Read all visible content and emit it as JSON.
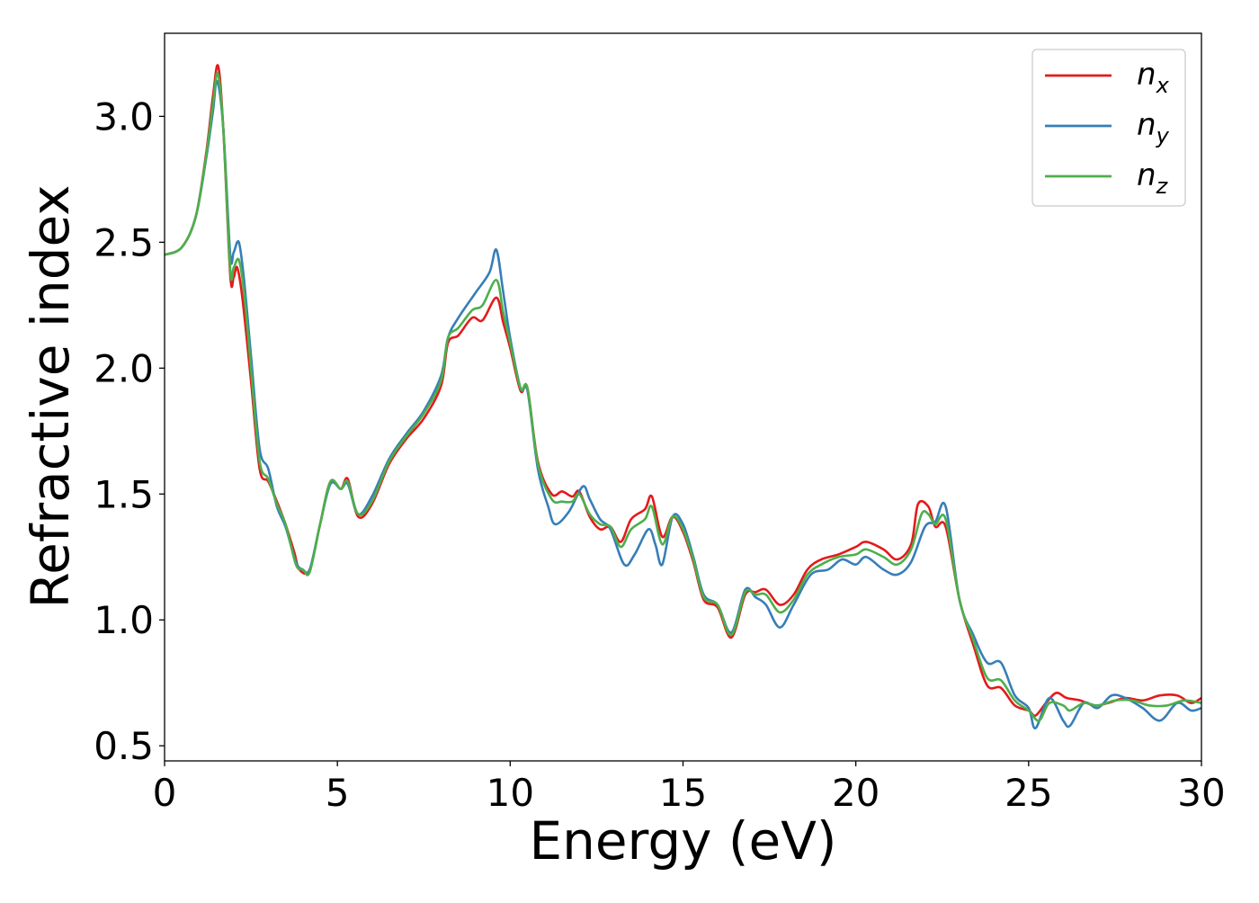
{
  "chart_data": {
    "type": "line",
    "title": "",
    "xlabel": "Energy (eV)",
    "ylabel": "Refractive index",
    "xlim": [
      0,
      30
    ],
    "ylim": [
      0.44,
      3.33
    ],
    "xticks": [
      0,
      5,
      10,
      15,
      20,
      25,
      30
    ],
    "xtick_labels": [
      "0",
      "5",
      "10",
      "15",
      "20",
      "25",
      "30"
    ],
    "yticks": [
      0.5,
      1.0,
      1.5,
      2.0,
      2.5,
      3.0
    ],
    "ytick_labels": [
      "0.5",
      "1.0",
      "1.5",
      "2.0",
      "2.5",
      "3.0"
    ],
    "grid": false,
    "legend_position": "top-right",
    "series": [
      {
        "name": "n",
        "subscript": "x",
        "color": "#e41a1c",
        "points": [
          [
            0,
            2.45
          ],
          [
            0.5,
            2.48
          ],
          [
            0.9,
            2.6
          ],
          [
            1.2,
            2.85
          ],
          [
            1.4,
            3.08
          ],
          [
            1.55,
            3.2
          ],
          [
            1.7,
            2.95
          ],
          [
            1.9,
            2.37
          ],
          [
            2.0,
            2.36
          ],
          [
            2.1,
            2.4
          ],
          [
            2.25,
            2.28
          ],
          [
            2.5,
            1.95
          ],
          [
            2.75,
            1.6
          ],
          [
            3.0,
            1.55
          ],
          [
            3.25,
            1.47
          ],
          [
            3.5,
            1.38
          ],
          [
            3.75,
            1.27
          ],
          [
            3.9,
            1.2
          ],
          [
            4.2,
            1.2
          ],
          [
            4.5,
            1.38
          ],
          [
            4.8,
            1.55
          ],
          [
            5.1,
            1.52
          ],
          [
            5.3,
            1.56
          ],
          [
            5.6,
            1.41
          ],
          [
            6.0,
            1.46
          ],
          [
            6.5,
            1.62
          ],
          [
            7.0,
            1.72
          ],
          [
            7.5,
            1.8
          ],
          [
            8.0,
            1.93
          ],
          [
            8.2,
            2.1
          ],
          [
            8.5,
            2.13
          ],
          [
            8.9,
            2.2
          ],
          [
            9.2,
            2.19
          ],
          [
            9.6,
            2.28
          ],
          [
            9.8,
            2.18
          ],
          [
            10.0,
            2.08
          ],
          [
            10.3,
            1.91
          ],
          [
            10.5,
            1.92
          ],
          [
            10.8,
            1.63
          ],
          [
            11.2,
            1.5
          ],
          [
            11.5,
            1.51
          ],
          [
            11.8,
            1.49
          ],
          [
            12.0,
            1.51
          ],
          [
            12.3,
            1.41
          ],
          [
            12.6,
            1.36
          ],
          [
            12.9,
            1.37
          ],
          [
            13.2,
            1.31
          ],
          [
            13.5,
            1.4
          ],
          [
            13.9,
            1.44
          ],
          [
            14.1,
            1.49
          ],
          [
            14.4,
            1.33
          ],
          [
            14.7,
            1.41
          ],
          [
            15.0,
            1.35
          ],
          [
            15.3,
            1.23
          ],
          [
            15.6,
            1.08
          ],
          [
            16.0,
            1.05
          ],
          [
            16.4,
            0.93
          ],
          [
            16.8,
            1.1
          ],
          [
            17.1,
            1.11
          ],
          [
            17.4,
            1.12
          ],
          [
            17.8,
            1.06
          ],
          [
            18.2,
            1.1
          ],
          [
            18.6,
            1.2
          ],
          [
            19.0,
            1.24
          ],
          [
            19.5,
            1.26
          ],
          [
            20.0,
            1.29
          ],
          [
            20.3,
            1.31
          ],
          [
            20.8,
            1.28
          ],
          [
            21.2,
            1.24
          ],
          [
            21.6,
            1.3
          ],
          [
            21.8,
            1.46
          ],
          [
            22.1,
            1.45
          ],
          [
            22.3,
            1.37
          ],
          [
            22.6,
            1.37
          ],
          [
            23.0,
            1.08
          ],
          [
            23.4,
            0.9
          ],
          [
            23.8,
            0.74
          ],
          [
            24.2,
            0.73
          ],
          [
            24.6,
            0.66
          ],
          [
            25.0,
            0.64
          ],
          [
            25.2,
            0.62
          ],
          [
            25.5,
            0.67
          ],
          [
            25.8,
            0.71
          ],
          [
            26.1,
            0.69
          ],
          [
            26.5,
            0.68
          ],
          [
            26.9,
            0.66
          ],
          [
            27.3,
            0.67
          ],
          [
            27.8,
            0.69
          ],
          [
            28.3,
            0.68
          ],
          [
            28.8,
            0.7
          ],
          [
            29.3,
            0.7
          ],
          [
            29.7,
            0.67
          ],
          [
            30.0,
            0.69
          ]
        ]
      },
      {
        "name": "n",
        "subscript": "y",
        "color": "#377eb8",
        "points": [
          [
            0,
            2.45
          ],
          [
            0.5,
            2.48
          ],
          [
            0.9,
            2.6
          ],
          [
            1.2,
            2.83
          ],
          [
            1.4,
            3.02
          ],
          [
            1.52,
            3.14
          ],
          [
            1.7,
            2.95
          ],
          [
            1.9,
            2.45
          ],
          [
            2.0,
            2.46
          ],
          [
            2.15,
            2.5
          ],
          [
            2.3,
            2.35
          ],
          [
            2.5,
            2.05
          ],
          [
            2.75,
            1.68
          ],
          [
            3.0,
            1.6
          ],
          [
            3.25,
            1.45
          ],
          [
            3.5,
            1.37
          ],
          [
            3.8,
            1.23
          ],
          [
            4.0,
            1.2
          ],
          [
            4.2,
            1.2
          ],
          [
            4.5,
            1.38
          ],
          [
            4.8,
            1.54
          ],
          [
            5.1,
            1.52
          ],
          [
            5.3,
            1.54
          ],
          [
            5.6,
            1.42
          ],
          [
            6.0,
            1.49
          ],
          [
            6.5,
            1.64
          ],
          [
            7.0,
            1.74
          ],
          [
            7.5,
            1.83
          ],
          [
            8.0,
            1.97
          ],
          [
            8.2,
            2.12
          ],
          [
            8.5,
            2.2
          ],
          [
            9.0,
            2.3
          ],
          [
            9.4,
            2.38
          ],
          [
            9.6,
            2.47
          ],
          [
            9.8,
            2.3
          ],
          [
            10.0,
            2.12
          ],
          [
            10.3,
            1.92
          ],
          [
            10.5,
            1.91
          ],
          [
            10.8,
            1.6
          ],
          [
            11.1,
            1.45
          ],
          [
            11.3,
            1.38
          ],
          [
            11.7,
            1.43
          ],
          [
            12.1,
            1.53
          ],
          [
            12.3,
            1.48
          ],
          [
            12.6,
            1.4
          ],
          [
            12.9,
            1.36
          ],
          [
            13.3,
            1.22
          ],
          [
            13.6,
            1.26
          ],
          [
            14.0,
            1.36
          ],
          [
            14.2,
            1.3
          ],
          [
            14.4,
            1.22
          ],
          [
            14.7,
            1.41
          ],
          [
            15.0,
            1.38
          ],
          [
            15.3,
            1.25
          ],
          [
            15.6,
            1.1
          ],
          [
            16.0,
            1.06
          ],
          [
            16.4,
            0.95
          ],
          [
            16.8,
            1.12
          ],
          [
            17.1,
            1.09
          ],
          [
            17.4,
            1.06
          ],
          [
            17.8,
            0.97
          ],
          [
            18.2,
            1.06
          ],
          [
            18.7,
            1.18
          ],
          [
            19.2,
            1.2
          ],
          [
            19.6,
            1.24
          ],
          [
            20.0,
            1.22
          ],
          [
            20.3,
            1.25
          ],
          [
            20.8,
            1.2
          ],
          [
            21.2,
            1.18
          ],
          [
            21.6,
            1.23
          ],
          [
            22.0,
            1.37
          ],
          [
            22.3,
            1.39
          ],
          [
            22.6,
            1.45
          ],
          [
            23.0,
            1.08
          ],
          [
            23.4,
            0.94
          ],
          [
            23.8,
            0.83
          ],
          [
            24.2,
            0.83
          ],
          [
            24.6,
            0.7
          ],
          [
            25.0,
            0.65
          ],
          [
            25.2,
            0.57
          ],
          [
            25.6,
            0.69
          ],
          [
            26.0,
            0.6
          ],
          [
            26.2,
            0.58
          ],
          [
            26.6,
            0.67
          ],
          [
            27.0,
            0.65
          ],
          [
            27.4,
            0.7
          ],
          [
            27.8,
            0.69
          ],
          [
            28.3,
            0.65
          ],
          [
            28.8,
            0.6
          ],
          [
            29.3,
            0.67
          ],
          [
            29.7,
            0.64
          ],
          [
            30.0,
            0.65
          ]
        ]
      },
      {
        "name": "n",
        "subscript": "z",
        "color": "#4daf4a",
        "points": [
          [
            0,
            2.45
          ],
          [
            0.5,
            2.48
          ],
          [
            0.9,
            2.6
          ],
          [
            1.2,
            2.84
          ],
          [
            1.4,
            3.05
          ],
          [
            1.54,
            3.17
          ],
          [
            1.7,
            2.95
          ],
          [
            1.9,
            2.39
          ],
          [
            2.0,
            2.4
          ],
          [
            2.15,
            2.43
          ],
          [
            2.3,
            2.3
          ],
          [
            2.5,
            2.0
          ],
          [
            2.75,
            1.63
          ],
          [
            3.0,
            1.56
          ],
          [
            3.25,
            1.46
          ],
          [
            3.5,
            1.38
          ],
          [
            3.8,
            1.22
          ],
          [
            4.0,
            1.2
          ],
          [
            4.2,
            1.19
          ],
          [
            4.5,
            1.38
          ],
          [
            4.8,
            1.55
          ],
          [
            5.1,
            1.52
          ],
          [
            5.3,
            1.55
          ],
          [
            5.6,
            1.42
          ],
          [
            6.0,
            1.47
          ],
          [
            6.5,
            1.63
          ],
          [
            7.0,
            1.73
          ],
          [
            7.5,
            1.82
          ],
          [
            8.0,
            1.95
          ],
          [
            8.2,
            2.12
          ],
          [
            8.5,
            2.16
          ],
          [
            8.9,
            2.23
          ],
          [
            9.2,
            2.25
          ],
          [
            9.6,
            2.35
          ],
          [
            9.8,
            2.22
          ],
          [
            10.0,
            2.1
          ],
          [
            10.3,
            1.92
          ],
          [
            10.5,
            1.92
          ],
          [
            10.8,
            1.62
          ],
          [
            11.2,
            1.48
          ],
          [
            11.5,
            1.47
          ],
          [
            11.8,
            1.47
          ],
          [
            12.0,
            1.5
          ],
          [
            12.3,
            1.42
          ],
          [
            12.6,
            1.38
          ],
          [
            12.9,
            1.37
          ],
          [
            13.2,
            1.29
          ],
          [
            13.5,
            1.36
          ],
          [
            13.9,
            1.4
          ],
          [
            14.1,
            1.45
          ],
          [
            14.4,
            1.3
          ],
          [
            14.7,
            1.41
          ],
          [
            15.0,
            1.36
          ],
          [
            15.3,
            1.24
          ],
          [
            15.6,
            1.09
          ],
          [
            16.0,
            1.06
          ],
          [
            16.4,
            0.94
          ],
          [
            16.8,
            1.11
          ],
          [
            17.1,
            1.1
          ],
          [
            17.4,
            1.1
          ],
          [
            17.8,
            1.03
          ],
          [
            18.2,
            1.08
          ],
          [
            18.6,
            1.18
          ],
          [
            19.0,
            1.22
          ],
          [
            19.5,
            1.25
          ],
          [
            20.0,
            1.26
          ],
          [
            20.3,
            1.28
          ],
          [
            20.8,
            1.25
          ],
          [
            21.2,
            1.22
          ],
          [
            21.6,
            1.28
          ],
          [
            21.9,
            1.42
          ],
          [
            22.1,
            1.42
          ],
          [
            22.3,
            1.38
          ],
          [
            22.6,
            1.4
          ],
          [
            23.0,
            1.08
          ],
          [
            23.4,
            0.92
          ],
          [
            23.8,
            0.77
          ],
          [
            24.2,
            0.76
          ],
          [
            24.6,
            0.68
          ],
          [
            25.0,
            0.64
          ],
          [
            25.3,
            0.6
          ],
          [
            25.6,
            0.67
          ],
          [
            26.0,
            0.66
          ],
          [
            26.2,
            0.64
          ],
          [
            26.6,
            0.67
          ],
          [
            27.0,
            0.66
          ],
          [
            27.5,
            0.68
          ],
          [
            28.0,
            0.68
          ],
          [
            28.5,
            0.66
          ],
          [
            29.0,
            0.66
          ],
          [
            29.5,
            0.68
          ],
          [
            30.0,
            0.67
          ]
        ]
      }
    ]
  }
}
